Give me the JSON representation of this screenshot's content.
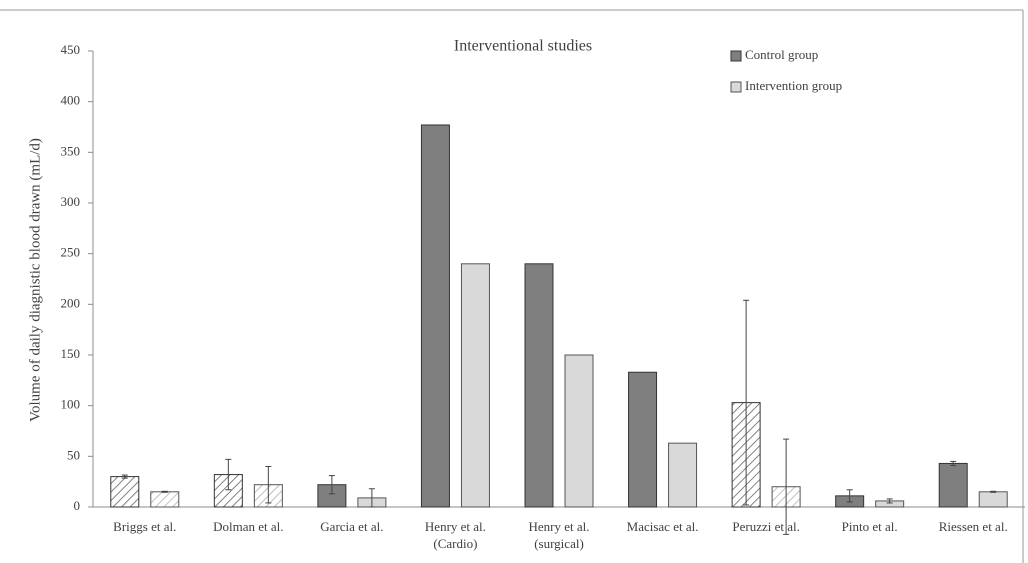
{
  "chart_data": {
    "type": "bar",
    "title": "Interventional studies",
    "y_label": "Volume of daily diagnistic blood drawn (mL/d)",
    "categories": [
      "Briggs et al.",
      "Dolman et al.",
      "Garcia et al.",
      "Henry et al.\n(Cardio)",
      "Henry et al.\n(surgical)",
      "Macisac et al.",
      "Peruzzi et al.",
      "Pinto et al.",
      "Riessen et al."
    ],
    "hatched": [
      true,
      true,
      false,
      false,
      false,
      false,
      true,
      false,
      false
    ],
    "series": [
      {
        "name": "Control group",
        "color": "#7f7f7f",
        "values": [
          30,
          32,
          22,
          377,
          240,
          133,
          103,
          11,
          43
        ],
        "errors": [
          1.5,
          15,
          9,
          null,
          null,
          null,
          101,
          6,
          2
        ]
      },
      {
        "name": "Intervention group",
        "color": "#d9d9d9",
        "values": [
          15,
          22,
          9,
          240,
          150,
          63,
          20,
          6,
          15
        ],
        "errors": [
          0.5,
          18,
          9,
          null,
          null,
          null,
          47,
          2,
          0.5
        ]
      }
    ],
    "ylim": [
      0,
      450
    ],
    "yticks": [
      0,
      50,
      100,
      150,
      200,
      250,
      300,
      350,
      400,
      450
    ],
    "legend": "top-right"
  }
}
